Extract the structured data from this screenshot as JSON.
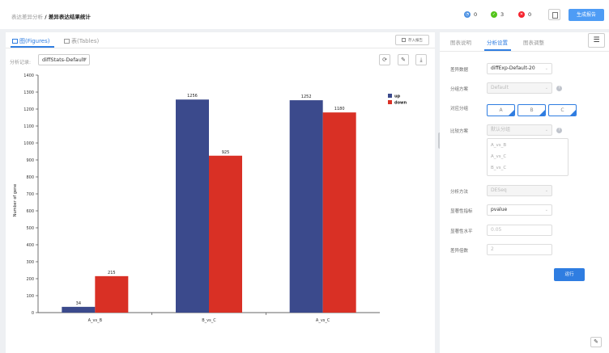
{
  "header": {
    "breadcrumb_parent": "表达差异分析",
    "breadcrumb_sep": " / ",
    "breadcrumb_current": "差异表达结果统计",
    "stats": [
      {
        "name": "running",
        "count": "0",
        "color": "#4a90e2",
        "icon": "clock-icon",
        "glyph": "◔"
      },
      {
        "name": "success",
        "count": "3",
        "color": "#52c41a",
        "icon": "check-icon",
        "glyph": "✓"
      },
      {
        "name": "failed",
        "count": "0",
        "color": "#f5222d",
        "icon": "close-icon",
        "glyph": "✕"
      }
    ],
    "report_button": "生成报告"
  },
  "left_panel": {
    "tab_figures": "图(Figures)",
    "tab_tables": "表(Tables)",
    "save_report": "存入报告",
    "record_label": "分析记录:",
    "record_value": "diffStats-Default"
  },
  "right_panel": {
    "tabs": [
      "图表说明",
      "分析设置",
      "图表调整"
    ],
    "active_tab": 1,
    "fields": {
      "diff_data_label": "差异数据",
      "diff_data_value": "diffExp-Default-20",
      "group_scheme_label": "分组方案",
      "group_scheme_value": "Default",
      "group_label": "对应分组",
      "groups": [
        "A",
        "B",
        "C"
      ],
      "compare_label": "比较方案",
      "compare_placeholder": "默认分组",
      "compare_items": [
        "A_vs_B",
        "A_vs_C",
        "B_vs_C"
      ],
      "method_label": "分析方法",
      "method_value": "DESeq",
      "sig_index_label": "显著性指标",
      "sig_index_value": "pvalue",
      "sig_level_label": "显著性水平",
      "sig_level_value": "0.05",
      "fold_label": "差异倍数",
      "fold_value": "2"
    },
    "run_button": "运行"
  },
  "chart_data": {
    "type": "bar",
    "categories": [
      "A_vs_B",
      "B_vs_C",
      "A_vs_C"
    ],
    "series": [
      {
        "name": "up",
        "values": [
          34,
          1256,
          1252
        ],
        "color": "#3b4a8c"
      },
      {
        "name": "down",
        "values": [
          215,
          925,
          1180
        ],
        "color": "#d93025"
      }
    ],
    "ylabel": "Number of gene",
    "xlabel": "",
    "ylim": [
      0,
      1400
    ],
    "yticks": [
      0,
      100,
      200,
      300,
      400,
      500,
      600,
      700,
      800,
      900,
      1000,
      1100,
      1200,
      1300,
      1400
    ],
    "legend": "top-right",
    "grid": false
  }
}
